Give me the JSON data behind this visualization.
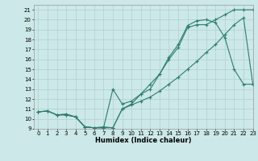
{
  "title": "",
  "xlabel": "Humidex (Indice chaleur)",
  "xlim": [
    -0.5,
    23
  ],
  "ylim": [
    9,
    21.5
  ],
  "xticks": [
    0,
    1,
    2,
    3,
    4,
    5,
    6,
    7,
    8,
    9,
    10,
    11,
    12,
    13,
    14,
    15,
    16,
    17,
    18,
    19,
    20,
    21,
    22,
    23
  ],
  "yticks": [
    9,
    10,
    11,
    12,
    13,
    14,
    15,
    16,
    17,
    18,
    19,
    20,
    21
  ],
  "bg_color": "#cce8e8",
  "line_color": "#2e7d6e",
  "grid_color": "#b0d0d0",
  "line1_x": [
    0,
    1,
    2,
    3,
    4,
    5,
    6,
    7,
    8,
    9,
    10,
    11,
    12,
    13,
    14,
    15,
    16,
    17,
    18,
    19,
    20,
    21,
    22,
    23
  ],
  "line1_y": [
    10.7,
    10.8,
    10.4,
    10.4,
    10.2,
    9.2,
    9.1,
    9.1,
    9.1,
    11.0,
    11.5,
    12.5,
    13.0,
    14.5,
    16.0,
    17.2,
    19.2,
    19.5,
    19.5,
    20.0,
    20.5,
    21.0,
    21.0,
    21.0
  ],
  "line2_x": [
    0,
    1,
    2,
    3,
    4,
    5,
    6,
    7,
    8,
    9,
    10,
    11,
    12,
    13,
    14,
    15,
    16,
    17,
    18,
    19,
    20,
    21,
    22,
    23
  ],
  "line2_y": [
    10.7,
    10.8,
    10.4,
    10.4,
    10.2,
    9.2,
    9.1,
    9.1,
    13.0,
    11.5,
    11.8,
    12.5,
    13.5,
    14.5,
    16.2,
    17.5,
    19.4,
    19.9,
    20.0,
    19.7,
    18.2,
    15.0,
    13.5,
    13.5
  ],
  "line3_x": [
    0,
    1,
    2,
    3,
    4,
    5,
    6,
    7,
    8,
    9,
    10,
    11,
    12,
    13,
    14,
    15,
    16,
    17,
    18,
    19,
    20,
    21,
    22,
    23
  ],
  "line3_y": [
    10.7,
    10.8,
    10.4,
    10.5,
    10.2,
    9.2,
    9.1,
    9.2,
    9.1,
    11.0,
    11.4,
    11.8,
    12.2,
    12.8,
    13.5,
    14.2,
    15.0,
    15.8,
    16.7,
    17.5,
    18.5,
    19.5,
    20.2,
    13.5
  ],
  "tick_fontsize": 5.0,
  "xlabel_fontsize": 6.0,
  "marker_size": 3.0,
  "line_width": 0.8
}
